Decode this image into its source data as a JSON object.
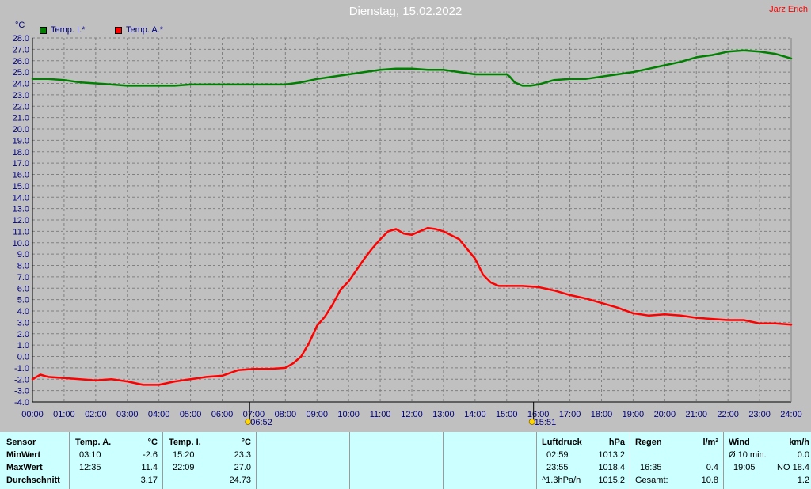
{
  "title": "Dienstag, 15.02.2022",
  "author": "Jarz Erich",
  "unit": "°C",
  "legend": [
    {
      "label": "Temp. I.*",
      "color": "#008000"
    },
    {
      "label": "Temp. A.*",
      "color": "#ff0000"
    }
  ],
  "sun_markers": [
    {
      "label": "06:52",
      "hour": 6.87,
      "icon": "sunrise-icon"
    },
    {
      "label": "15:51",
      "hour": 15.85,
      "icon": "sunset-icon"
    }
  ],
  "chart_data": {
    "type": "line",
    "xlabel": "",
    "ylabel": "°C",
    "xlim": [
      0,
      24
    ],
    "ylim": [
      -4,
      28
    ],
    "grid": true,
    "legend_position": "top-left",
    "x_ticks": [
      "00:00",
      "01:00",
      "02:00",
      "03:00",
      "04:00",
      "05:00",
      "06:00",
      "07:00",
      "08:00",
      "09:00",
      "10:00",
      "11:00",
      "12:00",
      "13:00",
      "14:00",
      "15:00",
      "16:00",
      "17:00",
      "18:00",
      "19:00",
      "20:00",
      "21:00",
      "22:00",
      "23:00",
      "24:00"
    ],
    "y_ticks": [
      "-4.0",
      "-3.0",
      "-2.0",
      "-1.0",
      "0.0",
      "1.0",
      "2.0",
      "3.0",
      "4.0",
      "5.0",
      "6.0",
      "7.0",
      "8.0",
      "9.0",
      "10.0",
      "11.0",
      "12.0",
      "13.0",
      "14.0",
      "15.0",
      "16.0",
      "17.0",
      "18.0",
      "19.0",
      "20.0",
      "21.0",
      "22.0",
      "23.0",
      "24.0",
      "25.0",
      "26.0",
      "27.0",
      "28.0"
    ],
    "series": [
      {
        "name": "Temp. I.*",
        "color": "#008000",
        "x": [
          0,
          0.5,
          1,
          1.5,
          2,
          2.5,
          3,
          3.5,
          4,
          4.5,
          5,
          5.5,
          6,
          6.5,
          7,
          7.5,
          8,
          8.5,
          9,
          9.5,
          10,
          10.5,
          11,
          11.5,
          12,
          12.5,
          13,
          13.5,
          14,
          14.5,
          15,
          15.1,
          15.25,
          15.5,
          15.75,
          16,
          16.25,
          16.5,
          17,
          17.5,
          18,
          18.5,
          19,
          19.5,
          20,
          20.5,
          21,
          21.5,
          22,
          22.5,
          23,
          23.5,
          24
        ],
        "y": [
          24.4,
          24.4,
          24.3,
          24.1,
          24.0,
          23.9,
          23.8,
          23.8,
          23.8,
          23.8,
          23.9,
          23.9,
          23.9,
          23.9,
          23.9,
          23.9,
          23.9,
          24.1,
          24.4,
          24.6,
          24.8,
          25.0,
          25.2,
          25.3,
          25.3,
          25.2,
          25.2,
          25.0,
          24.8,
          24.8,
          24.8,
          24.6,
          24.1,
          23.8,
          23.8,
          23.9,
          24.1,
          24.3,
          24.4,
          24.4,
          24.6,
          24.8,
          25.0,
          25.3,
          25.6,
          25.9,
          26.3,
          26.5,
          26.8,
          26.9,
          26.8,
          26.6,
          26.2
        ]
      },
      {
        "name": "Temp. A.*",
        "color": "#ff0000",
        "x": [
          0,
          0.25,
          0.5,
          1,
          1.5,
          2,
          2.5,
          3,
          3.5,
          4,
          4.5,
          5,
          5.5,
          6,
          6.5,
          7,
          7.5,
          8,
          8.25,
          8.5,
          8.75,
          9,
          9.25,
          9.5,
          9.75,
          10,
          10.25,
          10.5,
          10.75,
          11,
          11.25,
          11.5,
          11.75,
          12,
          12.25,
          12.5,
          12.75,
          13,
          13.5,
          14,
          14.25,
          14.5,
          14.75,
          15,
          15.5,
          16,
          16.5,
          17,
          17.5,
          18,
          18.5,
          19,
          19.5,
          20,
          20.5,
          21,
          21.5,
          22,
          22.5,
          23,
          23.5,
          24
        ],
        "y": [
          -2.0,
          -1.6,
          -1.8,
          -1.9,
          -2.0,
          -2.1,
          -2.0,
          -2.2,
          -2.5,
          -2.5,
          -2.2,
          -2.0,
          -1.8,
          -1.7,
          -1.2,
          -1.1,
          -1.1,
          -1.0,
          -0.6,
          0.0,
          1.2,
          2.7,
          3.5,
          4.6,
          5.9,
          6.6,
          7.6,
          8.6,
          9.5,
          10.3,
          11.0,
          11.2,
          10.8,
          10.7,
          11.0,
          11.3,
          11.2,
          11.0,
          10.3,
          8.6,
          7.2,
          6.5,
          6.2,
          6.2,
          6.2,
          6.1,
          5.8,
          5.4,
          5.1,
          4.7,
          4.3,
          3.8,
          3.6,
          3.7,
          3.6,
          3.4,
          3.3,
          3.2,
          3.2,
          2.9,
          2.9,
          2.8
        ]
      }
    ]
  },
  "table": {
    "sensor": {
      "header": "Sensor",
      "rows": [
        "MinWert",
        "MaxWert",
        "Durchschnitt"
      ]
    },
    "temp_a": {
      "header": "Temp. A.",
      "unit": "°C",
      "rows": [
        {
          "time": "03:10",
          "value": "-2.6"
        },
        {
          "time": "12:35",
          "value": "11.4"
        },
        {
          "time": "",
          "value": "3.17"
        }
      ]
    },
    "temp_i": {
      "header": "Temp. I.",
      "unit": "°C",
      "rows": [
        {
          "time": "15:20",
          "value": "23.3"
        },
        {
          "time": "22:09",
          "value": "27.0"
        },
        {
          "time": "",
          "value": "24.73"
        }
      ]
    },
    "luftdruck": {
      "header": "Luftdruck",
      "unit": "hPa",
      "rows": [
        {
          "time": "02:59",
          "value": "1013.2"
        },
        {
          "time": "23:55",
          "value": "1018.4"
        },
        {
          "time": "^1.3hPa/h",
          "value": "1015.2"
        }
      ]
    },
    "regen": {
      "header": "Regen",
      "unit": "l/m²",
      "rows": [
        {
          "time": "",
          "value": ""
        },
        {
          "time": "16:35",
          "value": "0.4"
        },
        {
          "time": "Gesamt:",
          "value": "10.8"
        }
      ]
    },
    "wind": {
      "header": "Wind",
      "unit": "km/h",
      "rows": [
        {
          "time": "Ø 10 min.",
          "value": "0.0"
        },
        {
          "time": "19:05",
          "value": "NO 18.4"
        },
        {
          "time": "",
          "value": "1.2"
        }
      ]
    }
  }
}
